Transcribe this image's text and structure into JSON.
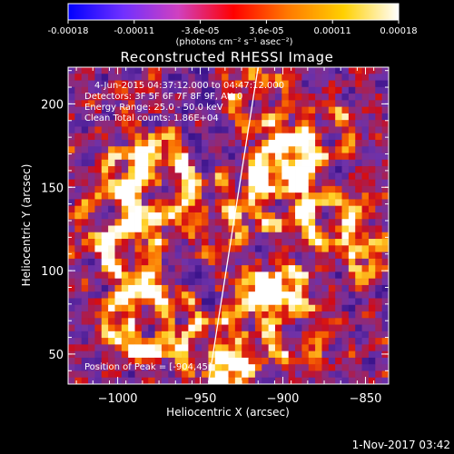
{
  "colorbar": {
    "ticks": [
      "-0.00018",
      "-0.00011",
      "-3.6e-05",
      "3.6e-05",
      "0.00011",
      "0.00018"
    ],
    "units": "(photons cm⁻² s⁻¹ asec⁻²)",
    "colors": [
      "#0000ff",
      "#7030ff",
      "#d040c0",
      "#ff0000",
      "#ff7a00",
      "#ffd000",
      "#ffffff"
    ]
  },
  "chart_data": {
    "type": "heatmap",
    "title": "Reconstructed RHESSI Image",
    "xlabel": "Heliocentric X (arcsec)",
    "ylabel": "Heliocentric Y (arcsec)",
    "xlim": [
      -1030,
      -836
    ],
    "ylim": [
      32,
      222
    ],
    "xticks": [
      -1000,
      -950,
      -900,
      -850
    ],
    "yticks": [
      50,
      100,
      150,
      200
    ],
    "xtick_labels": [
      "−1000",
      "−950",
      "−900",
      "−850"
    ],
    "ytick_labels": [
      "50",
      "100",
      "150",
      "200"
    ],
    "value_range": [
      -0.00018,
      0.00018
    ],
    "grid": false,
    "annotations": {
      "time_range": "4-Jun-2015 04:37:12.000 to 04:47:12.000",
      "detectors": "Detectors: 3F 5F 6F 7F 8F 9F, Att 0",
      "energy": "Energy Range: 25.0 - 50.0 keV",
      "clean": "Clean   Total counts: 1.86E+04",
      "peak": "Position of Peak = [-904,45]"
    },
    "limb_line": {
      "x": [
        -945,
        -915
      ],
      "y": [
        33,
        222
      ]
    }
  },
  "footer": {
    "timestamp": "1-Nov-2017 03:42"
  }
}
